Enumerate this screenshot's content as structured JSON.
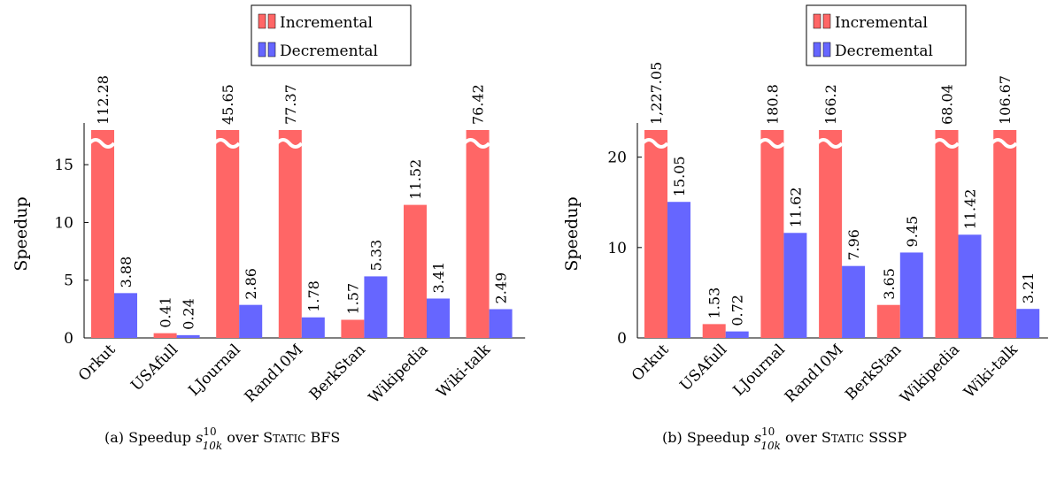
{
  "colors": {
    "incremental": "#ff6666",
    "decremental": "#6666ff",
    "axis": "#000000"
  },
  "chart_data": [
    {
      "type": "bar",
      "caption": {
        "prefix": "(a) Speedup",
        "symbol": "s",
        "sup": "10",
        "sub": "10k",
        "middle": "over",
        "smallcaps_first": "S",
        "smallcaps_rest": "TATIC",
        "suffix": "BFS"
      },
      "ylabel": "Speedup",
      "ylim": [
        0,
        18
      ],
      "yticks": [
        0,
        5,
        10,
        15
      ],
      "legend_position": "top-center",
      "categories": [
        "Orkut",
        "USAfull",
        "LJournal",
        "Rand10M",
        "BerkStan",
        "Wikipedia",
        "Wiki-talk"
      ],
      "series": [
        {
          "name": "Incremental",
          "values": [
            112.28,
            0.41,
            45.65,
            77.37,
            1.57,
            11.52,
            76.42
          ],
          "labels": [
            "112.28",
            "0.41",
            "45.65",
            "77.37",
            "1.57",
            "11.52",
            "76.42"
          ]
        },
        {
          "name": "Decremental",
          "values": [
            3.88,
            0.24,
            2.86,
            1.78,
            5.33,
            3.41,
            2.49
          ],
          "labels": [
            "3.88",
            "0.24",
            "2.86",
            "1.78",
            "5.33",
            "3.41",
            "2.49"
          ]
        }
      ],
      "axis_break": true
    },
    {
      "type": "bar",
      "caption": {
        "prefix": "(b) Speedup",
        "symbol": "s",
        "sup": "10",
        "sub": "10k",
        "middle": "over",
        "smallcaps_first": "S",
        "smallcaps_rest": "TATIC",
        "suffix": "SSSP"
      },
      "ylabel": "Speedup",
      "ylim": [
        0,
        23
      ],
      "yticks": [
        0,
        10,
        20
      ],
      "legend_position": "top-right",
      "categories": [
        "Orkut",
        "USAfull",
        "LJournal",
        "Rand10M",
        "BerkStan",
        "Wikipedia",
        "Wiki-talk"
      ],
      "series": [
        {
          "name": "Incremental",
          "values": [
            1227.05,
            1.53,
            180.8,
            166.2,
            3.65,
            68.04,
            106.67
          ],
          "labels": [
            "1,227.05",
            "1.53",
            "180.8",
            "166.2",
            "3.65",
            "68.04",
            "106.67"
          ]
        },
        {
          "name": "Decremental",
          "values": [
            15.05,
            0.72,
            11.62,
            7.96,
            9.45,
            11.42,
            3.21
          ],
          "labels": [
            "15.05",
            "0.72",
            "11.62",
            "7.96",
            "9.45",
            "11.42",
            "3.21"
          ]
        }
      ],
      "axis_break": true
    }
  ]
}
